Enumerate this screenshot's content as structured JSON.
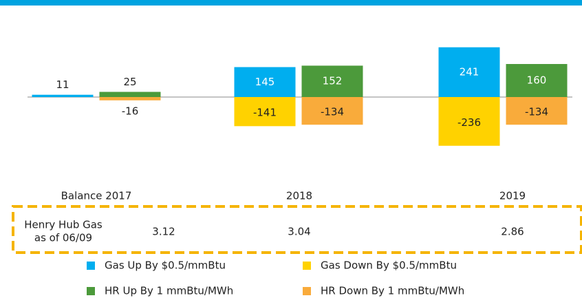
{
  "chart_data": {
    "type": "bar",
    "categories": [
      "Balance 2017",
      "2018",
      "2019"
    ],
    "series": [
      {
        "name": "Gas Up By $0.5/mmBtu",
        "color": "#00aeef",
        "values": [
          11,
          145,
          241
        ]
      },
      {
        "name": "Gas Down By $0.5/mmBtu",
        "color": "#ffd200",
        "values": [
          null,
          -141,
          -236
        ]
      },
      {
        "name": "HR Up By 1 mmBtu/MWh",
        "color": "#4c9a3b",
        "values": [
          25,
          152,
          160
        ]
      },
      {
        "name": "HR Down By 1 mmBtu/MWh",
        "color": "#f9ab3b",
        "values": [
          -16,
          -134,
          -134
        ]
      }
    ],
    "table": {
      "row_label": [
        "Henry Hub Gas",
        "as of 06/09"
      ],
      "values": [
        3.12,
        3.04,
        2.86
      ]
    }
  }
}
